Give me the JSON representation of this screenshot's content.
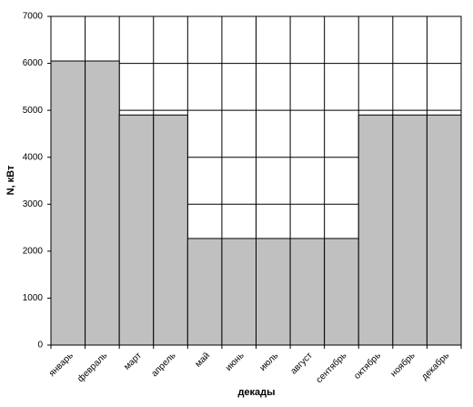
{
  "chart_data": {
    "type": "bar",
    "x_label": "декады",
    "y_label": "N, кВт",
    "categories": [
      "январь",
      "февраль",
      "март",
      "апрель",
      "май",
      "июнь",
      "июль",
      "август",
      "сентябрь",
      "октябрь",
      "ноябрь",
      "декабрь"
    ],
    "values": [
      6050,
      6050,
      4900,
      4900,
      2270,
      2270,
      2270,
      2270,
      2270,
      4900,
      4900,
      4900
    ],
    "color": "#c0c0c0",
    "ylim": [
      0,
      7000
    ],
    "yticks": [
      0,
      1000,
      2000,
      3000,
      4000,
      5000,
      6000,
      7000
    ],
    "grid": true
  }
}
